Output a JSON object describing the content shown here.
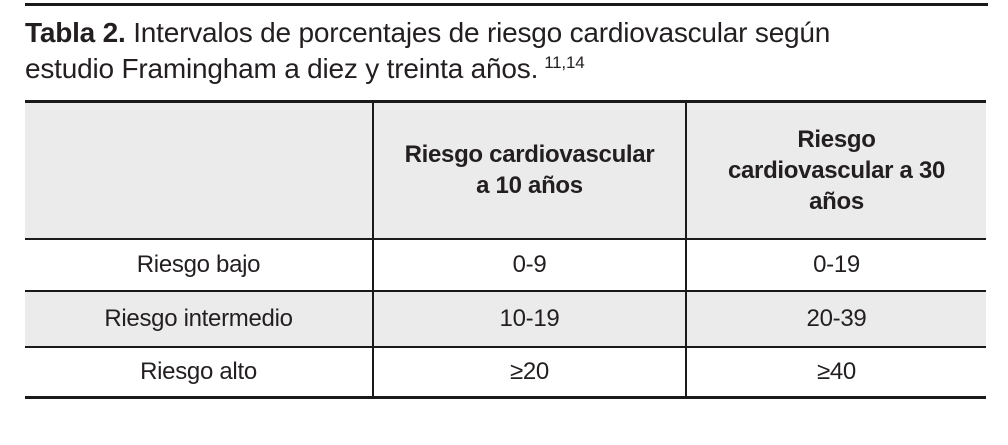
{
  "colors": {
    "rule": "#1a1a1a",
    "text": "#231f20",
    "shaded_row": "#ebebeb",
    "background": "#ffffff"
  },
  "title": {
    "label": "Tabla 2.",
    "line1": "Intervalos de porcentajes de riesgo cardiovascular según",
    "line2": "estudio Framingham a diez y treinta años.",
    "reference": "11,14"
  },
  "table": {
    "columns": [
      {
        "header": ""
      },
      {
        "header": "Riesgo cardiovascular\na 10 años"
      },
      {
        "header": "Riesgo\ncardiovascular a 30\naños"
      }
    ],
    "rows": [
      {
        "label": "Riesgo bajo",
        "risk_10y": "0-9",
        "risk_30y": "0-19"
      },
      {
        "label": "Riesgo intermedio",
        "risk_10y": "10-19",
        "risk_30y": "20-39"
      },
      {
        "label": "Riesgo alto",
        "risk_10y": "≥20",
        "risk_30y": "≥40"
      }
    ]
  }
}
